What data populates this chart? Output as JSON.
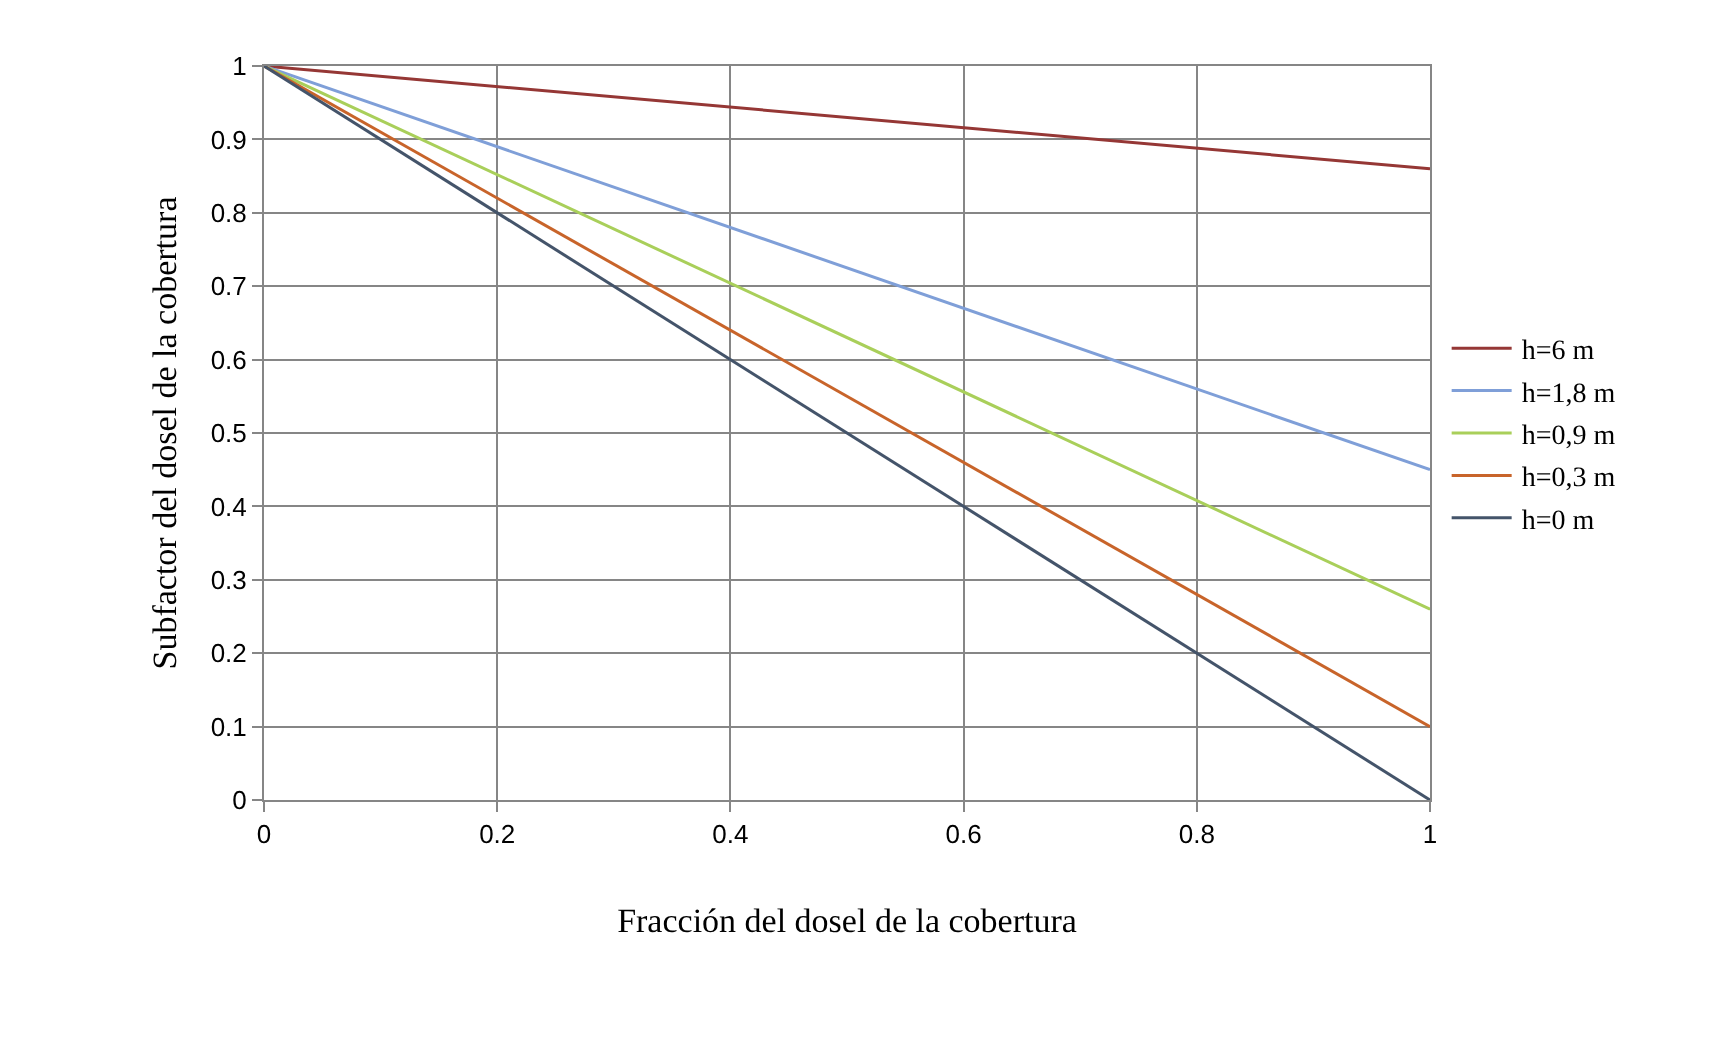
{
  "chart_data": {
    "type": "line",
    "xlabel": "Fracción del dosel de la cobertura",
    "ylabel": "Subfactor del dosel de la cobertura",
    "x": [
      0,
      1
    ],
    "series": [
      {
        "name": "h=6 m",
        "color": "#953735",
        "values": [
          1,
          0.86
        ]
      },
      {
        "name": "h=1,8 m",
        "color": "#7f9fd8",
        "values": [
          1,
          0.45
        ]
      },
      {
        "name": "h=0,9 m",
        "color": "#a9cf5a",
        "values": [
          1,
          0.26
        ]
      },
      {
        "name": "h=0,3 m",
        "color": "#c8642a",
        "values": [
          1,
          0.1
        ]
      },
      {
        "name": "h=0 m",
        "color": "#44546a",
        "values": [
          1,
          0.0
        ]
      }
    ],
    "xlim": [
      0,
      1
    ],
    "xticks": [
      0,
      0.2,
      0.4,
      0.6,
      0.8,
      1
    ],
    "ylim": [
      0,
      1
    ],
    "yticks": [
      0,
      0.1,
      0.2,
      0.3,
      0.4,
      0.5,
      0.6,
      0.7,
      0.8,
      0.9,
      1
    ],
    "grid": true,
    "legend": "right",
    "marker": "none",
    "line_style": "solid"
  }
}
